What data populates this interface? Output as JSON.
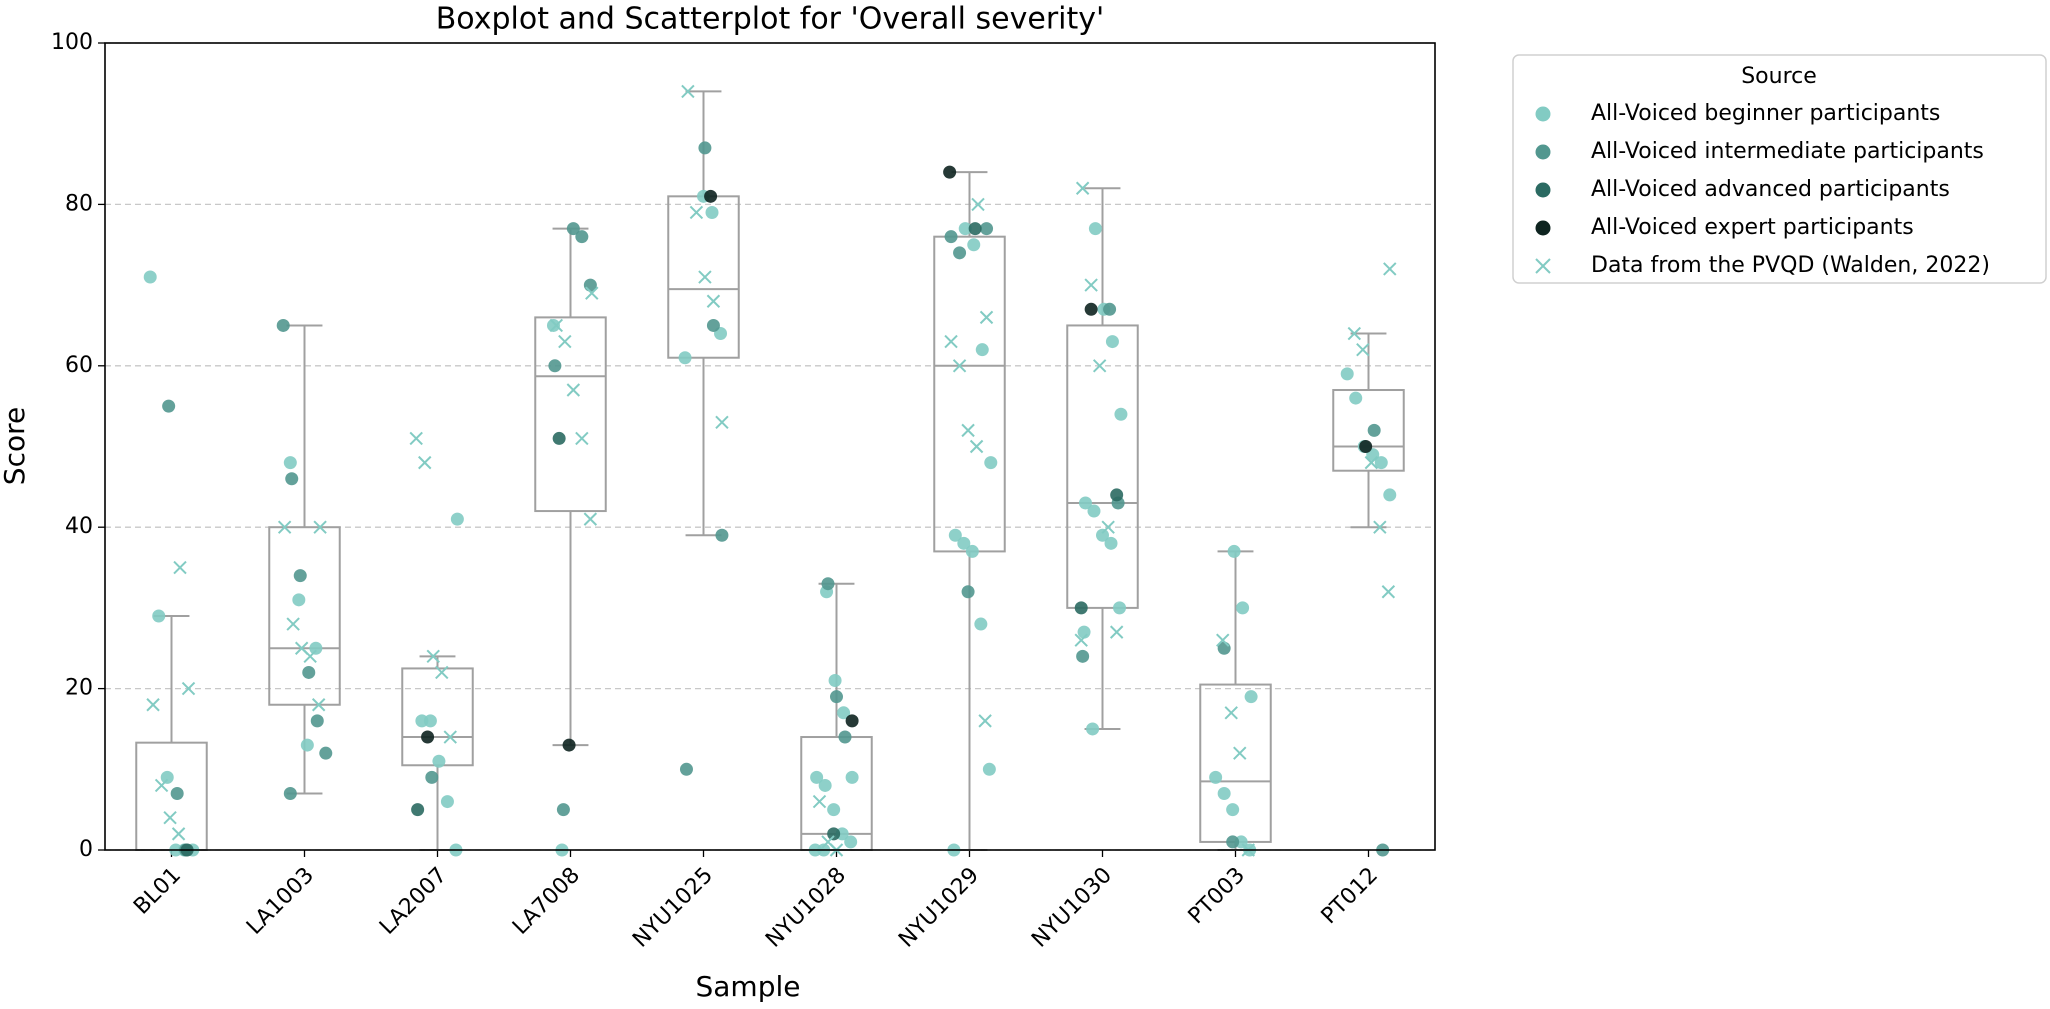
{
  "chart_data": {
    "type": "box",
    "title": "Boxplot and Scatterplot for 'Overall severity'",
    "x_label": "Sample",
    "y_label": "Score",
    "categories": [
      "BL01",
      "LA1003",
      "LA2007",
      "LA7008",
      "NYU1025",
      "NYU1028",
      "NYU1029",
      "NYU1030",
      "PT003",
      "PT012"
    ],
    "boxes": [
      {
        "whislo": 0,
        "q1": 0,
        "med": 0,
        "q3": 13.3,
        "whishi": 29
      },
      {
        "whislo": 7,
        "q1": 18,
        "med": 25,
        "q3": 40,
        "whishi": 65
      },
      {
        "whislo": 0,
        "q1": 10.5,
        "med": 14,
        "q3": 22.5,
        "whishi": 24
      },
      {
        "whislo": 13,
        "q1": 42,
        "med": 58.7,
        "q3": 66,
        "whishi": 77
      },
      {
        "whislo": 39,
        "q1": 61,
        "med": 69.5,
        "q3": 81,
        "whishi": 94
      },
      {
        "whislo": 0,
        "q1": 0,
        "med": 2,
        "q3": 14,
        "whishi": 33
      },
      {
        "whislo": 0,
        "q1": 37,
        "med": 60,
        "q3": 76,
        "whishi": 84
      },
      {
        "whislo": 15,
        "q1": 30,
        "med": 43,
        "q3": 65,
        "whishi": 82
      },
      {
        "whislo": 0,
        "q1": 1,
        "med": 8.5,
        "q3": 20.5,
        "whishi": 37
      },
      {
        "whislo": 40,
        "q1": 47,
        "med": 50,
        "q3": 57,
        "whishi": 64
      }
    ],
    "box_color": "#a0a0a0",
    "ylim": [
      0,
      100
    ],
    "yticks": [
      0,
      20,
      40,
      60,
      80,
      100
    ],
    "grid": true,
    "legend": "outside upper right",
    "legend_title": "Source",
    "series": [
      {
        "name": "All-Voiced beginner participants",
        "color": "#82cbc3",
        "marker": "o",
        "x": [
          "BL01",
          "BL01",
          "BL01",
          "BL01",
          "BL01",
          "BL01",
          "LA1003",
          "LA1003",
          "LA1003",
          "LA1003",
          "LA2007",
          "LA2007",
          "LA2007",
          "LA2007",
          "LA2007",
          "LA2007",
          "LA7008",
          "LA7008",
          "NYU1025",
          "NYU1025",
          "NYU1025",
          "NYU1025",
          "NYU1028",
          "NYU1028",
          "NYU1028",
          "NYU1028",
          "NYU1028",
          "NYU1028",
          "NYU1028",
          "NYU1028",
          "NYU1028",
          "NYU1028",
          "NYU1028",
          "NYU1029",
          "NYU1029",
          "NYU1029",
          "NYU1029",
          "NYU1029",
          "NYU1029",
          "NYU1029",
          "NYU1029",
          "NYU1029",
          "NYU1029",
          "NYU1030",
          "NYU1030",
          "NYU1030",
          "NYU1030",
          "NYU1030",
          "NYU1030",
          "NYU1030",
          "NYU1030",
          "NYU1030",
          "NYU1030",
          "NYU1030",
          "PT003",
          "PT003",
          "PT003",
          "PT003",
          "PT003",
          "PT003",
          "PT003",
          "PT003",
          "PT012",
          "PT012",
          "PT012",
          "PT012",
          "PT012",
          "PT012"
        ],
        "values": [
          71,
          29,
          9,
          0,
          0,
          0,
          48,
          31,
          13,
          25,
          41,
          16,
          16,
          11,
          6,
          0,
          65,
          0,
          81,
          79,
          64,
          61,
          32,
          21,
          17,
          9,
          9,
          8,
          5,
          2,
          1,
          0,
          0,
          77,
          75,
          62,
          48,
          39,
          38,
          37,
          28,
          10,
          0,
          77,
          67,
          63,
          54,
          43,
          42,
          39,
          38,
          30,
          27,
          15,
          37,
          30,
          19,
          9,
          7,
          5,
          1,
          0,
          59,
          56,
          50,
          49,
          48,
          44
        ]
      },
      {
        "name": "All-Voiced intermediate participants",
        "color": "#52978f",
        "marker": "o",
        "x": [
          "BL01",
          "BL01",
          "BL01",
          "LA1003",
          "LA1003",
          "LA1003",
          "LA1003",
          "LA1003",
          "LA1003",
          "LA1003",
          "LA2007",
          "LA7008",
          "LA7008",
          "LA7008",
          "LA7008",
          "LA7008",
          "NYU1025",
          "NYU1025",
          "NYU1025",
          "NYU1025",
          "NYU1028",
          "NYU1028",
          "NYU1028",
          "NYU1029",
          "NYU1029",
          "NYU1029",
          "NYU1029",
          "NYU1030",
          "NYU1030",
          "NYU1030",
          "PT003",
          "PT003",
          "PT012",
          "PT012"
        ],
        "values": [
          55,
          7,
          0,
          65,
          46,
          34,
          22,
          16,
          12,
          7,
          9,
          77,
          76,
          70,
          60,
          5,
          87,
          65,
          39,
          10,
          33,
          19,
          14,
          77,
          76,
          74,
          32,
          67,
          43,
          24,
          25,
          1,
          52,
          0
        ]
      },
      {
        "name": "All-Voiced advanced participants",
        "color": "#2b6a62",
        "marker": "o",
        "x": [
          "BL01",
          "LA2007",
          "LA7008",
          "NYU1028",
          "NYU1029",
          "NYU1030",
          "NYU1030"
        ],
        "values": [
          0,
          5,
          51,
          2,
          77,
          44,
          30
        ]
      },
      {
        "name": "All-Voiced expert participants",
        "color": "#0e2420",
        "marker": "o",
        "x": [
          "LA2007",
          "LA7008",
          "NYU1025",
          "NYU1028",
          "NYU1029",
          "NYU1030",
          "PT012"
        ],
        "values": [
          14,
          13,
          81,
          16,
          84,
          67,
          50
        ]
      },
      {
        "name": "Data from the PVQD (Walden, 2022)",
        "color": "#82cbc3",
        "marker": "x",
        "x": [
          "BL01",
          "BL01",
          "BL01",
          "BL01",
          "BL01",
          "BL01",
          "LA1003",
          "LA1003",
          "LA1003",
          "LA1003",
          "LA1003",
          "LA1003",
          "LA2007",
          "LA2007",
          "LA2007",
          "LA2007",
          "LA2007",
          "LA7008",
          "LA7008",
          "LA7008",
          "LA7008",
          "LA7008",
          "LA7008",
          "NYU1025",
          "NYU1025",
          "NYU1025",
          "NYU1025",
          "NYU1025",
          "NYU1028",
          "NYU1028",
          "NYU1028",
          "NYU1029",
          "NYU1029",
          "NYU1029",
          "NYU1029",
          "NYU1029",
          "NYU1029",
          "NYU1029",
          "NYU1030",
          "NYU1030",
          "NYU1030",
          "NYU1030",
          "NYU1030",
          "NYU1030",
          "PT003",
          "PT003",
          "PT003",
          "PT003",
          "PT012",
          "PT012",
          "PT012",
          "PT012",
          "PT012",
          "PT012"
        ],
        "values": [
          35,
          20,
          18,
          8,
          4,
          2,
          40,
          40,
          28,
          25,
          24,
          18,
          51,
          48,
          24,
          22,
          14,
          69,
          65,
          63,
          57,
          51,
          41,
          94,
          79,
          71,
          68,
          53,
          6,
          1,
          0,
          80,
          66,
          63,
          60,
          52,
          50,
          16,
          82,
          70,
          60,
          40,
          27,
          26,
          26,
          17,
          12,
          0,
          72,
          64,
          62,
          48,
          40,
          32
        ]
      }
    ]
  }
}
